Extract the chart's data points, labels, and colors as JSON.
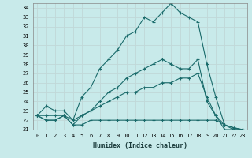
{
  "xlabel": "Humidex (Indice chaleur)",
  "bg_color": "#c8eaea",
  "line_color": "#1a6b6b",
  "grid_color": "#c0d8d8",
  "xlim": [
    -0.5,
    23.5
  ],
  "ylim": [
    21,
    34.5
  ],
  "yticks": [
    21,
    22,
    23,
    24,
    25,
    26,
    27,
    28,
    29,
    30,
    31,
    32,
    33,
    34
  ],
  "xticks": [
    0,
    1,
    2,
    3,
    4,
    5,
    6,
    7,
    8,
    9,
    10,
    11,
    12,
    13,
    14,
    15,
    16,
    17,
    18,
    19,
    20,
    21,
    22,
    23
  ],
  "curves": [
    {
      "x": [
        0,
        1,
        2,
        3,
        4,
        5,
        6,
        7,
        8,
        9,
        10,
        11,
        12,
        13,
        14,
        15,
        16,
        17,
        18,
        19,
        20,
        21,
        22,
        23
      ],
      "y": [
        22.5,
        23.5,
        23.0,
        23.0,
        22.0,
        24.5,
        25.5,
        27.5,
        28.5,
        29.5,
        31.0,
        31.5,
        33.0,
        32.5,
        33.5,
        34.5,
        33.5,
        33.0,
        32.5,
        28.0,
        24.5,
        21.5,
        21.0,
        21.0
      ]
    },
    {
      "x": [
        0,
        1,
        2,
        3,
        4,
        5,
        6,
        7,
        8,
        9,
        10,
        11,
        12,
        13,
        14,
        15,
        16,
        17,
        18,
        19,
        20,
        21,
        22,
        23
      ],
      "y": [
        22.5,
        22.5,
        22.5,
        22.5,
        22.0,
        22.5,
        23.0,
        24.0,
        25.0,
        25.5,
        26.5,
        27.0,
        27.5,
        28.0,
        28.5,
        28.0,
        27.5,
        27.5,
        28.5,
        24.0,
        22.5,
        21.5,
        21.2,
        21.0
      ]
    },
    {
      "x": [
        0,
        1,
        2,
        3,
        4,
        5,
        6,
        7,
        8,
        9,
        10,
        11,
        12,
        13,
        14,
        15,
        16,
        17,
        18,
        19,
        20,
        21,
        22,
        23
      ],
      "y": [
        22.5,
        22.0,
        22.0,
        22.5,
        21.5,
        22.5,
        23.0,
        23.5,
        24.0,
        24.5,
        25.0,
        25.0,
        25.5,
        25.5,
        26.0,
        26.0,
        26.5,
        26.5,
        27.0,
        24.5,
        22.5,
        21.0,
        21.0,
        21.0
      ]
    },
    {
      "x": [
        0,
        1,
        2,
        3,
        4,
        5,
        6,
        7,
        8,
        9,
        10,
        11,
        12,
        13,
        14,
        15,
        16,
        17,
        18,
        19,
        20,
        21,
        22,
        23
      ],
      "y": [
        22.5,
        22.0,
        22.0,
        22.5,
        21.5,
        21.5,
        22.0,
        22.0,
        22.0,
        22.0,
        22.0,
        22.0,
        22.0,
        22.0,
        22.0,
        22.0,
        22.0,
        22.0,
        22.0,
        22.0,
        22.0,
        21.5,
        21.2,
        21.0
      ]
    }
  ]
}
